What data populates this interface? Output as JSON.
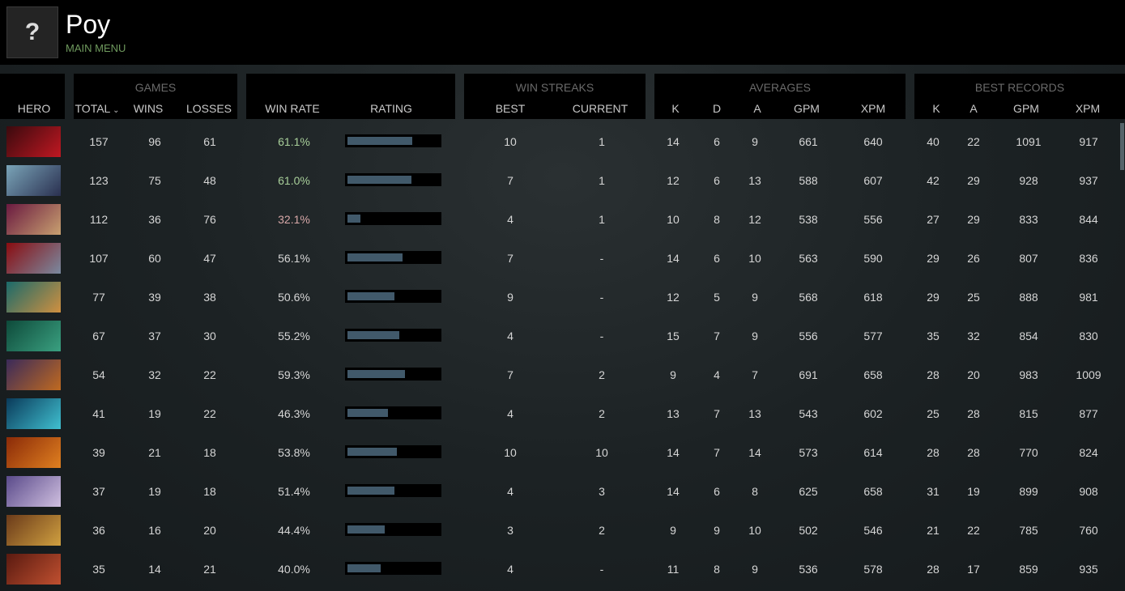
{
  "profile": {
    "name": "Poy",
    "menu_link": "MAIN MENU",
    "avatar_icon": "unknown-avatar-icon"
  },
  "groups": {
    "games": "GAMES",
    "win_streaks": "WIN STREAKS",
    "averages": "AVERAGES",
    "best_records": "BEST RECORDS"
  },
  "headers": [
    "HERO",
    "TOTAL",
    "WINS",
    "LOSSES",
    "WIN RATE",
    "RATING",
    "BEST",
    "CURRENT",
    "K",
    "D",
    "A",
    "GPM",
    "XPM",
    "K",
    "A",
    "GPM",
    "XPM"
  ],
  "sort_icon": "chevron-down-icon",
  "colors": {
    "win_rate_high": "#a8cf9a",
    "win_rate_low": "#d8a8a8",
    "rating_fill": "#41596a"
  },
  "rows": [
    {
      "hero_colors": [
        "#3a0a0e",
        "#c01822"
      ],
      "total": "157",
      "wins": "96",
      "losses": "61",
      "win_rate": "61.1%",
      "rate_tone": "high",
      "rating": 0.71,
      "best": "10",
      "current": "1",
      "k": "14",
      "d": "6",
      "a": "9",
      "gpm": "661",
      "xpm": "640",
      "best_k": "40",
      "best_a": "22",
      "best_gpm": "1091",
      "best_xpm": "917"
    },
    {
      "hero_colors": [
        "#7aa4b8",
        "#2a3050"
      ],
      "total": "123",
      "wins": "75",
      "losses": "48",
      "win_rate": "61.0%",
      "rate_tone": "high",
      "rating": 0.7,
      "best": "7",
      "current": "1",
      "k": "12",
      "d": "6",
      "a": "13",
      "gpm": "588",
      "xpm": "607",
      "best_k": "42",
      "best_a": "29",
      "best_gpm": "928",
      "best_xpm": "937"
    },
    {
      "hero_colors": [
        "#6a1a40",
        "#c8a070"
      ],
      "total": "112",
      "wins": "36",
      "losses": "76",
      "win_rate": "32.1%",
      "rate_tone": "low",
      "rating": 0.14,
      "best": "4",
      "current": "1",
      "k": "10",
      "d": "8",
      "a": "12",
      "gpm": "538",
      "xpm": "556",
      "best_k": "27",
      "best_a": "29",
      "best_gpm": "833",
      "best_xpm": "844"
    },
    {
      "hero_colors": [
        "#8a0c10",
        "#7a8aa0"
      ],
      "total": "107",
      "wins": "60",
      "losses": "47",
      "win_rate": "56.1%",
      "rate_tone": "normal",
      "rating": 0.6,
      "best": "7",
      "current": "-",
      "k": "14",
      "d": "6",
      "a": "10",
      "gpm": "563",
      "xpm": "590",
      "best_k": "29",
      "best_a": "26",
      "best_gpm": "807",
      "best_xpm": "836"
    },
    {
      "hero_colors": [
        "#1a6a6a",
        "#d09040"
      ],
      "total": "77",
      "wins": "39",
      "losses": "38",
      "win_rate": "50.6%",
      "rate_tone": "normal",
      "rating": 0.51,
      "best": "9",
      "current": "-",
      "k": "12",
      "d": "5",
      "a": "9",
      "gpm": "568",
      "xpm": "618",
      "best_k": "29",
      "best_a": "25",
      "best_gpm": "888",
      "best_xpm": "981"
    },
    {
      "hero_colors": [
        "#0e4a3a",
        "#3aa080"
      ],
      "total": "67",
      "wins": "37",
      "losses": "30",
      "win_rate": "55.2%",
      "rate_tone": "normal",
      "rating": 0.57,
      "best": "4",
      "current": "-",
      "k": "15",
      "d": "7",
      "a": "9",
      "gpm": "556",
      "xpm": "577",
      "best_k": "35",
      "best_a": "32",
      "best_gpm": "854",
      "best_xpm": "830"
    },
    {
      "hero_colors": [
        "#3a2a5a",
        "#c06a20"
      ],
      "total": "54",
      "wins": "32",
      "losses": "22",
      "win_rate": "59.3%",
      "rate_tone": "normal",
      "rating": 0.63,
      "best": "7",
      "current": "2",
      "k": "9",
      "d": "4",
      "a": "7",
      "gpm": "691",
      "xpm": "658",
      "best_k": "28",
      "best_a": "20",
      "best_gpm": "983",
      "best_xpm": "1009"
    },
    {
      "hero_colors": [
        "#0a3a5a",
        "#40c0d0"
      ],
      "total": "41",
      "wins": "19",
      "losses": "22",
      "win_rate": "46.3%",
      "rate_tone": "normal",
      "rating": 0.44,
      "best": "4",
      "current": "2",
      "k": "13",
      "d": "7",
      "a": "13",
      "gpm": "543",
      "xpm": "602",
      "best_k": "25",
      "best_a": "28",
      "best_gpm": "815",
      "best_xpm": "877"
    },
    {
      "hero_colors": [
        "#8a2a08",
        "#e08020"
      ],
      "total": "39",
      "wins": "21",
      "losses": "18",
      "win_rate": "53.8%",
      "rate_tone": "normal",
      "rating": 0.54,
      "best": "10",
      "current": "10",
      "k": "14",
      "d": "7",
      "a": "14",
      "gpm": "573",
      "xpm": "614",
      "best_k": "28",
      "best_a": "28",
      "best_gpm": "770",
      "best_xpm": "824"
    },
    {
      "hero_colors": [
        "#5a4a8a",
        "#d0c0e0"
      ],
      "total": "37",
      "wins": "19",
      "losses": "18",
      "win_rate": "51.4%",
      "rate_tone": "normal",
      "rating": 0.51,
      "best": "4",
      "current": "3",
      "k": "14",
      "d": "6",
      "a": "8",
      "gpm": "625",
      "xpm": "658",
      "best_k": "31",
      "best_a": "19",
      "best_gpm": "899",
      "best_xpm": "908"
    },
    {
      "hero_colors": [
        "#6a3a1a",
        "#d0a040"
      ],
      "total": "36",
      "wins": "16",
      "losses": "20",
      "win_rate": "44.4%",
      "rate_tone": "normal",
      "rating": 0.41,
      "best": "3",
      "current": "2",
      "k": "9",
      "d": "9",
      "a": "10",
      "gpm": "502",
      "xpm": "546",
      "best_k": "21",
      "best_a": "22",
      "best_gpm": "785",
      "best_xpm": "760"
    },
    {
      "hero_colors": [
        "#5a1a10",
        "#c05030"
      ],
      "total": "35",
      "wins": "14",
      "losses": "21",
      "win_rate": "40.0%",
      "rate_tone": "normal",
      "rating": 0.36,
      "best": "4",
      "current": "-",
      "k": "11",
      "d": "8",
      "a": "9",
      "gpm": "536",
      "xpm": "578",
      "best_k": "28",
      "best_a": "17",
      "best_gpm": "859",
      "best_xpm": "935"
    }
  ]
}
